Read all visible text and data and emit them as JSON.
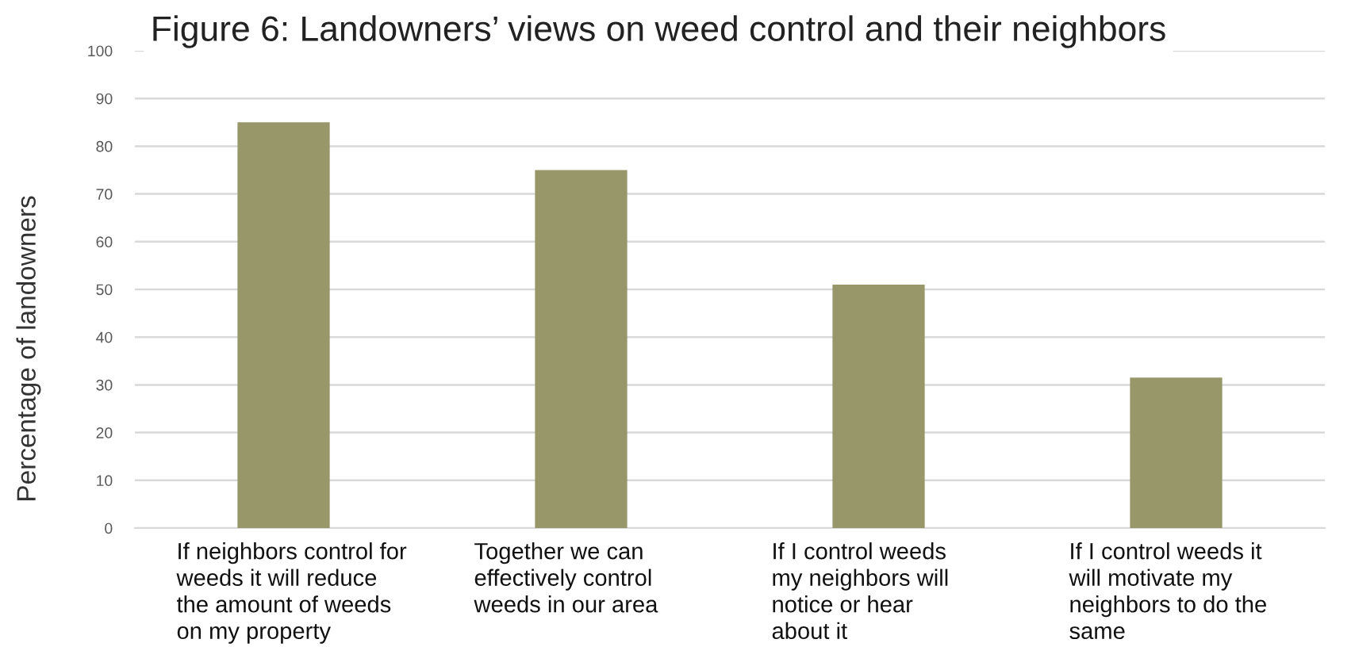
{
  "chart_data": {
    "type": "bar",
    "title": "Figure 6: Landowners’ views on weed control and their neighbors",
    "ylabel": "Percentage of landowners",
    "categories": [
      "If neighbors control for\nweeds it will reduce\nthe amount of weeds\non my property",
      "Together we can\neffectively control\nweeds in our area",
      "If I control weeds\nmy neighbors will\nnotice or hear\nabout it",
      "If I control weeds it\nwill motivate my\nneighbors to do the\nsame"
    ],
    "values": [
      85,
      75,
      51,
      31.5
    ],
    "color": "#98976a",
    "ylim": [
      0,
      100
    ],
    "yticks": [
      0,
      10,
      20,
      30,
      40,
      50,
      60,
      70,
      80,
      90,
      100
    ],
    "grid": "y"
  }
}
